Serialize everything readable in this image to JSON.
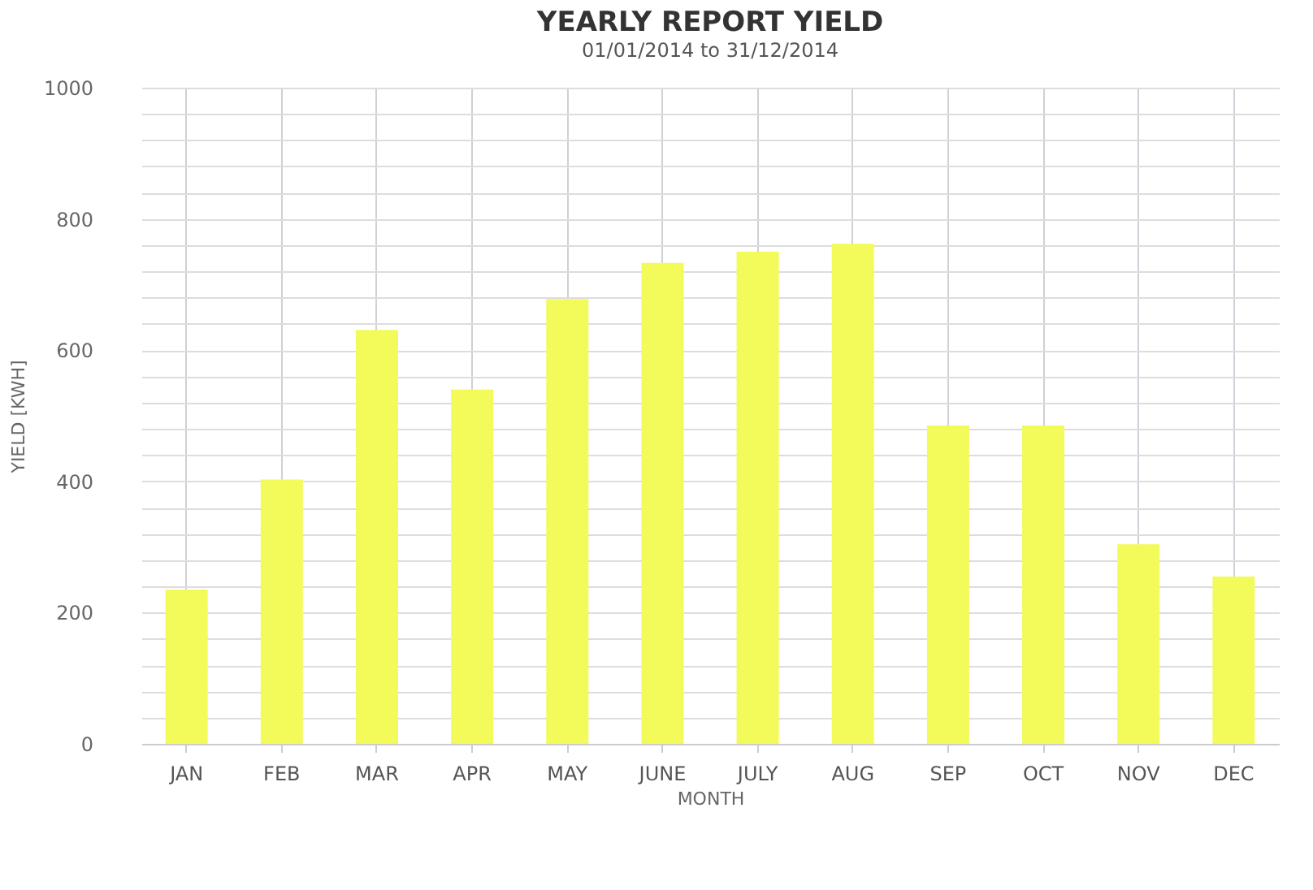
{
  "chart_data": {
    "type": "bar",
    "title": "YEARLY REPORT YIELD",
    "subtitle": "01/01/2014 to 31/12/2014",
    "xlabel": "MONTH",
    "ylabel": "YIELD [KWH]",
    "categories": [
      "JAN",
      "FEB",
      "MAR",
      "APR",
      "MAY",
      "JUNE",
      "JULY",
      "AUG",
      "SEP",
      "OCT",
      "NOV",
      "DEC"
    ],
    "values": [
      235,
      403,
      631,
      540,
      678,
      733,
      750,
      762,
      485,
      485,
      304,
      255
    ],
    "color": "#f2fb5a",
    "ylim": [
      0,
      1000
    ],
    "yticks": [
      0,
      {
        "value": 40,
        "label": null
      },
      {
        "value": 80,
        "label": null
      },
      {
        "value": 120,
        "label": null
      },
      {
        "value": 160,
        "label": null
      },
      200,
      {
        "value": 240,
        "label": null
      },
      {
        "value": 280,
        "label": null
      },
      {
        "value": 320,
        "label": null
      },
      {
        "value": 360,
        "label": null
      },
      400,
      {
        "value": 440,
        "label": null
      },
      {
        "value": 480,
        "label": null
      },
      {
        "value": 520,
        "label": null
      },
      {
        "value": 560,
        "label": null
      },
      600,
      {
        "value": 640,
        "label": null
      },
      {
        "value": 680,
        "label": null
      },
      {
        "value": 720,
        "label": null
      },
      {
        "value": 760,
        "label": null
      },
      800,
      {
        "value": 840,
        "label": null
      },
      {
        "value": 880,
        "label": null
      },
      {
        "value": 920,
        "label": null
      },
      {
        "value": 960,
        "label": null
      },
      1000
    ],
    "grid": true
  }
}
